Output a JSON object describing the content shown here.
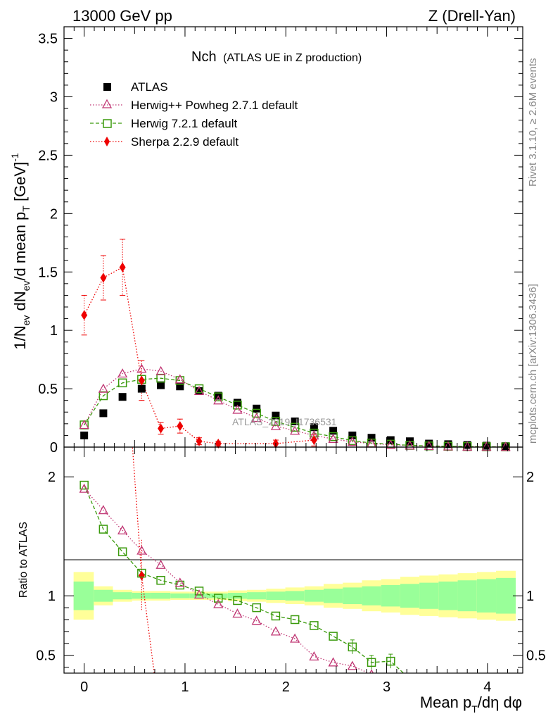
{
  "header": {
    "left": "13000 GeV pp",
    "right": "Z (Drell-Yan)"
  },
  "side_labels": {
    "rivet": "Rivet 3.1.10, ≥ 2.6M events",
    "mcplots": "mcplots.cern.ch [arXiv:1306.3436]"
  },
  "colors": {
    "atlas": "#000000",
    "powheg": "#c03774",
    "herwig72": "#3a9a0c",
    "sherpa": "#ee0000",
    "band_inner": "#99ff99",
    "band_outer": "#ffff99"
  },
  "chart_data": [
    {
      "type": "scatter",
      "title": "Nch",
      "title_sub": "(ATLAS UE in Z production)",
      "ylabel_parts": [
        "1/N",
        "ev",
        " dN",
        "ev",
        "/d mean p",
        "T",
        " [GeV]",
        "-1"
      ],
      "watermark": "ATLAS_2019_I1736531",
      "xlim": [
        -0.2,
        4.35
      ],
      "ylim": [
        0,
        3.6
      ],
      "y_ticks": [
        "0",
        "0.5",
        "1",
        "1.5",
        "2",
        "2.5",
        "3",
        "3.5"
      ],
      "x": [
        0,
        0.19,
        0.38,
        0.57,
        0.76,
        0.95,
        1.14,
        1.33,
        1.52,
        1.71,
        1.9,
        2.09,
        2.28,
        2.47,
        2.66,
        2.85,
        3.04,
        3.23,
        3.42,
        3.61,
        3.8,
        3.99,
        4.18
      ],
      "series": [
        {
          "name": "ATLAS",
          "marker": "square",
          "values": [
            0.1,
            0.29,
            0.43,
            0.5,
            0.53,
            0.52,
            0.48,
            0.44,
            0.38,
            0.33,
            0.27,
            0.22,
            0.17,
            0.14,
            0.1,
            0.08,
            0.06,
            0.05,
            0.03,
            0.025,
            0.018,
            0.012,
            0.008
          ]
        },
        {
          "name": "Herwig++ Powheg 2.7.1 default",
          "marker": "triangle",
          "line": "dotted",
          "values": [
            0.19,
            0.5,
            0.63,
            0.67,
            0.65,
            0.58,
            0.48,
            0.4,
            0.32,
            0.25,
            0.18,
            0.14,
            0.1,
            0.07,
            0.045,
            0.03,
            0.02,
            0.014,
            0.009,
            0.006,
            0.004,
            0.003,
            0.002
          ]
        },
        {
          "name": "Herwig 7.2.1 default",
          "marker": "open-square",
          "line": "dashed",
          "values": [
            0.19,
            0.44,
            0.55,
            0.58,
            0.59,
            0.57,
            0.5,
            0.43,
            0.36,
            0.29,
            0.22,
            0.17,
            0.12,
            0.09,
            0.055,
            0.035,
            0.025,
            0.015,
            0.01,
            0.007,
            0.005,
            0.003,
            0.002
          ]
        },
        {
          "name": "Sherpa 2.2.9 default",
          "marker": "diamond",
          "line": "dotted",
          "x": [
            0,
            0.19,
            0.38,
            0.57,
            0.76,
            0.95,
            1.14,
            1.33,
            1.9,
            2.28
          ],
          "values": [
            1.13,
            1.45,
            1.54,
            0.57,
            0.16,
            0.18,
            0.05,
            0.03,
            0.03,
            0.06
          ],
          "errors": [
            0.17,
            0.19,
            0.24,
            0.17,
            0.05,
            0.06,
            0.03,
            0.02,
            0.03,
            0.05
          ]
        }
      ]
    },
    {
      "type": "scatter",
      "ylabel": "Ratio to ATLAS",
      "xlabel": "Mean p_T/dη dφ",
      "xlabel_parts": [
        "Mean p",
        "T",
        "/dη dφ"
      ],
      "xlim": [
        -0.2,
        4.35
      ],
      "ylim": [
        0.35,
        2.25
      ],
      "y_ticks": [
        "0.5",
        "1",
        "2"
      ],
      "x_ticks": [
        "0",
        "1",
        "2",
        "3",
        "4"
      ],
      "x": [
        0,
        0.19,
        0.38,
        0.57,
        0.76,
        0.95,
        1.14,
        1.33,
        1.52,
        1.71,
        1.9,
        2.09,
        2.28,
        2.47,
        2.66,
        2.85,
        3.04,
        3.23,
        3.42,
        3.61,
        3.8,
        3.99,
        4.18
      ],
      "band_halfwidth": 0.095,
      "band_inner": [
        0.12,
        0.05,
        0.03,
        0.025,
        0.025,
        0.02,
        0.02,
        0.02,
        0.025,
        0.03,
        0.035,
        0.04,
        0.05,
        0.06,
        0.07,
        0.08,
        0.09,
        0.1,
        0.11,
        0.12,
        0.13,
        0.14,
        0.15
      ],
      "band_outer": [
        0.2,
        0.08,
        0.05,
        0.04,
        0.04,
        0.035,
        0.035,
        0.035,
        0.045,
        0.05,
        0.06,
        0.07,
        0.08,
        0.1,
        0.11,
        0.13,
        0.14,
        0.16,
        0.17,
        0.18,
        0.19,
        0.2,
        0.21
      ],
      "series": [
        {
          "name": "Herwig++ Powheg 2.7.1 default",
          "x": [
            0,
            0.19,
            0.38,
            0.57,
            0.76,
            0.95,
            1.14,
            1.33,
            1.52,
            1.71,
            1.9,
            2.09,
            2.28,
            2.47,
            2.66,
            2.85
          ],
          "values": [
            1.9,
            1.72,
            1.55,
            1.38,
            1.26,
            1.11,
            1.01,
            0.93,
            0.85,
            0.79,
            0.7,
            0.64,
            0.49,
            0.44,
            0.41,
            0.34
          ]
        },
        {
          "name": "Herwig 7.2.1 default",
          "x": [
            0,
            0.19,
            0.38,
            0.57,
            0.76,
            0.95,
            1.14,
            1.33,
            1.52,
            1.71,
            1.9,
            2.09,
            2.28,
            2.47,
            2.66,
            2.85,
            3.04,
            3.23
          ],
          "values": [
            1.93,
            1.56,
            1.37,
            1.19,
            1.13,
            1.09,
            1.04,
            0.98,
            0.96,
            0.9,
            0.83,
            0.8,
            0.75,
            0.66,
            0.57,
            0.44,
            0.45,
            0.3
          ]
        },
        {
          "name": "Sherpa 2.2.9 default",
          "x": [
            0.57
          ],
          "values": [
            1.17
          ],
          "errors": [
            0.3
          ],
          "line_x": [
            0.45,
            0.57,
            0.71
          ],
          "line_y": [
            2.6,
            1.17,
            0.25
          ]
        }
      ]
    }
  ]
}
